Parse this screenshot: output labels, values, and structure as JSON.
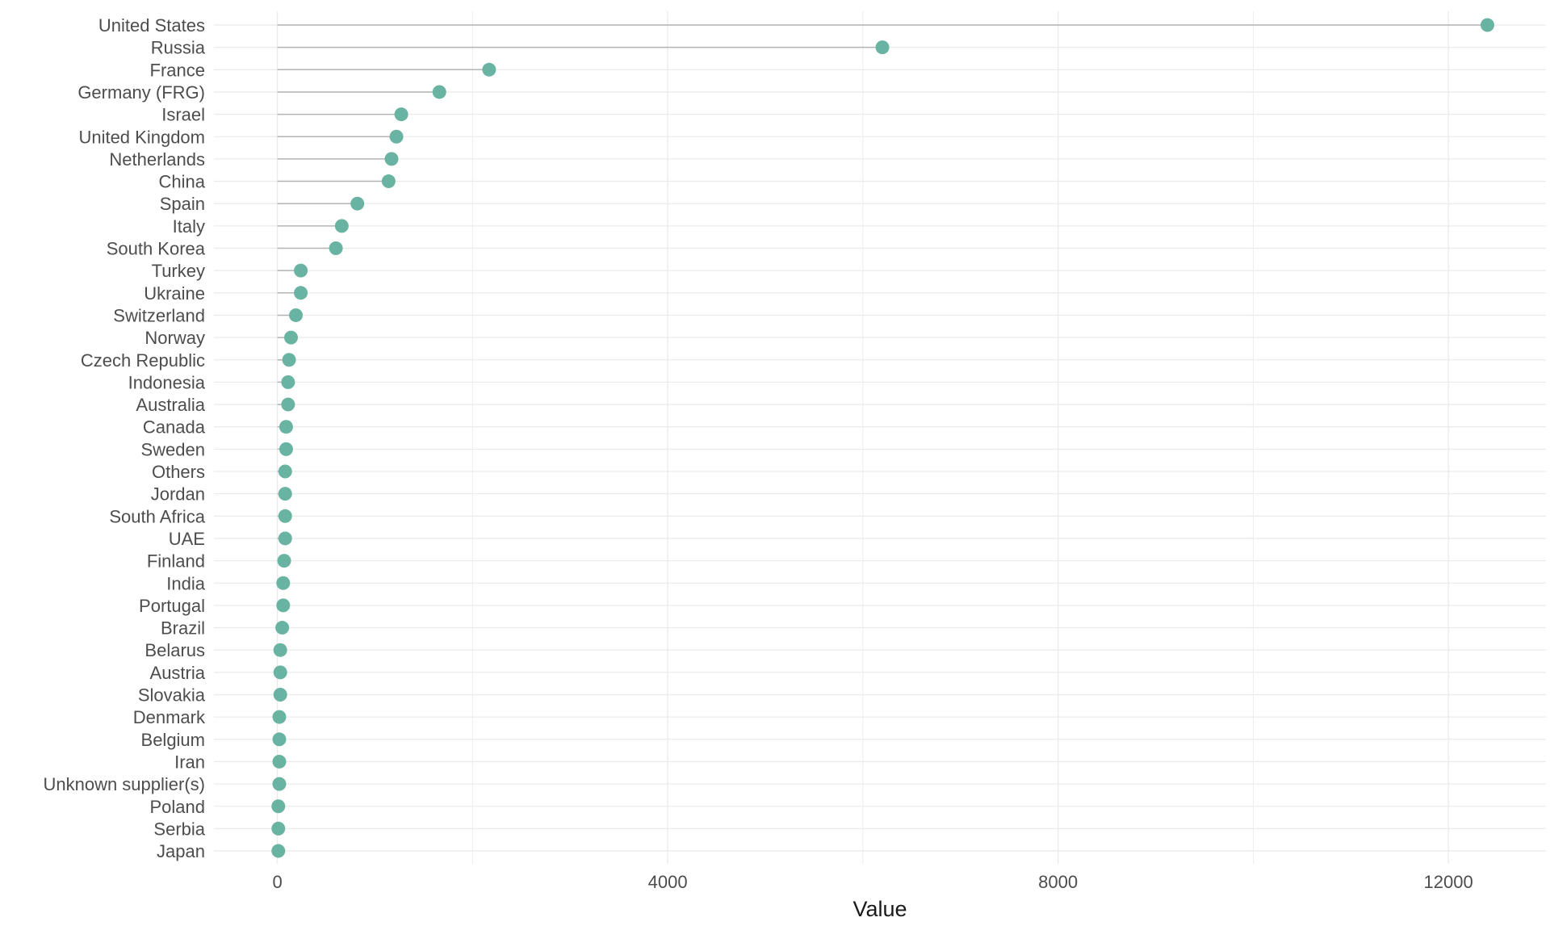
{
  "chart_data": {
    "type": "lollipop",
    "xlabel": "Value",
    "ylabel": "",
    "xlim": [
      -650,
      13000
    ],
    "x_ticks": [
      0,
      4000,
      8000,
      12000
    ],
    "x_tick_labels": [
      "0",
      "4000",
      "8000",
      "12000"
    ],
    "grid": true,
    "point_color": "#69b3a2",
    "stem_color": "#b3b3b3",
    "grid_color": "#ebebeb",
    "categories": [
      "United States",
      "Russia",
      "France",
      "Germany (FRG)",
      "Israel",
      "United Kingdom",
      "Netherlands",
      "China",
      "Spain",
      "Italy",
      "South Korea",
      "Turkey",
      "Ukraine",
      "Switzerland",
      "Norway",
      "Czech Republic",
      "Indonesia",
      "Australia",
      "Canada",
      "Sweden",
      "Others",
      "Jordan",
      "South Africa",
      "UAE",
      "Finland",
      "India",
      "Portugal",
      "Brazil",
      "Belarus",
      "Austria",
      "Slovakia",
      "Denmark",
      "Belgium",
      "Iran",
      "Unknown supplier(s)",
      "Poland",
      "Serbia",
      "Japan"
    ],
    "values": [
      12400,
      6200,
      2170,
      1660,
      1270,
      1220,
      1170,
      1140,
      820,
      660,
      600,
      240,
      240,
      190,
      140,
      120,
      110,
      110,
      90,
      90,
      80,
      80,
      80,
      80,
      70,
      60,
      60,
      50,
      30,
      30,
      30,
      20,
      20,
      20,
      20,
      10,
      10,
      10
    ]
  }
}
